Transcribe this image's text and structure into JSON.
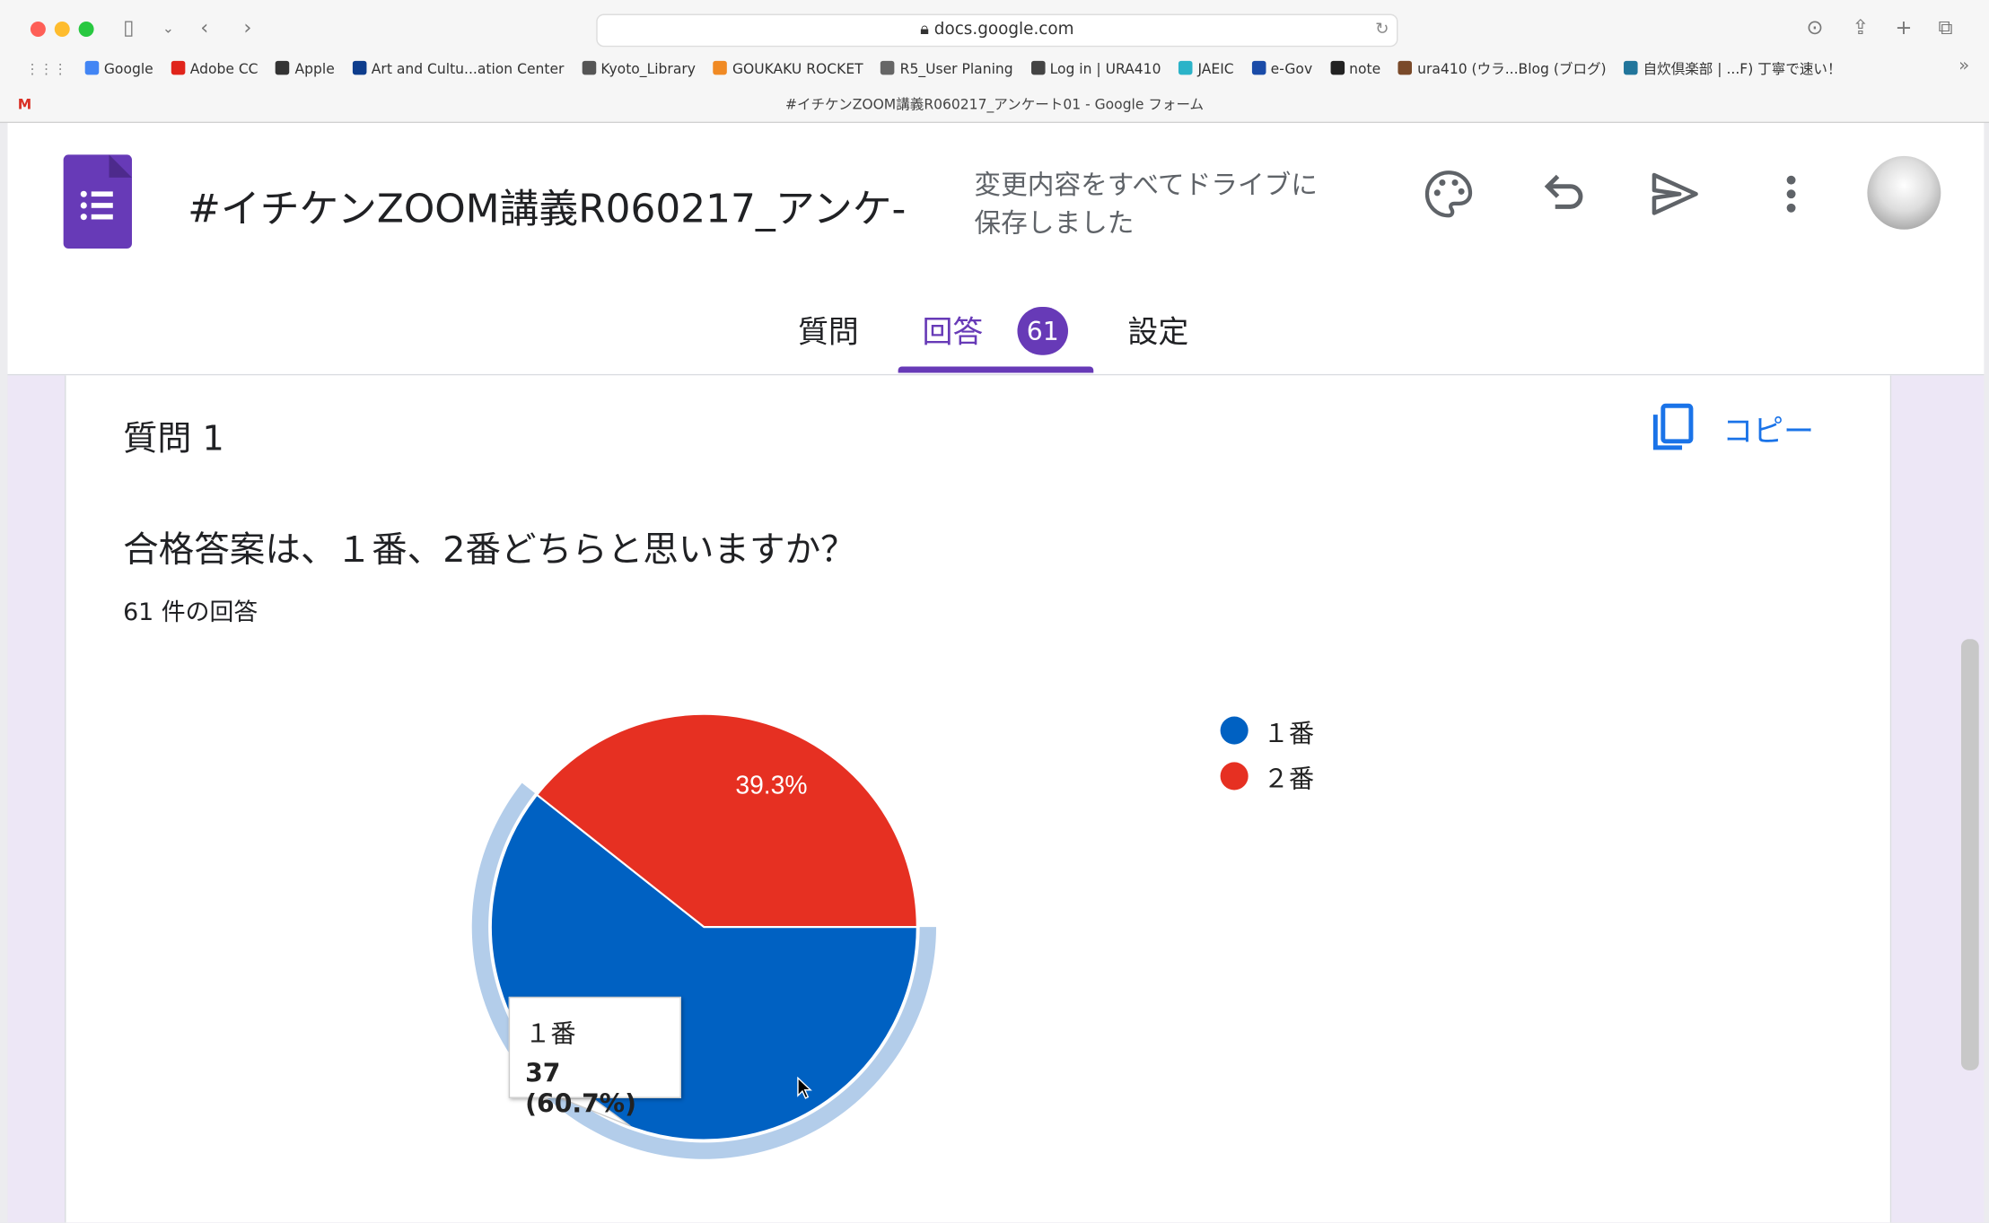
{
  "browser": {
    "url": "docs.google.com",
    "tab_title": "#イチケンZOOM講義R060217_アンケート01 - Google フォーム",
    "bookmarks": [
      "Google",
      "Adobe CC",
      "Apple",
      "Art and Cultu...ation Center",
      "Kyoto_Library",
      "GOUKAKU ROCKET",
      "R5_User Planing",
      "Log in | URA410",
      "JAEIC",
      "e-Gov",
      "note",
      "ura410 (ウラ...Blog (ブログ)",
      "自炊倶楽部 | ...F) 丁寧で速い！"
    ],
    "bookmark_colors": [
      "#4285f4",
      "#e0241b",
      "#333333",
      "#0d3c8c",
      "#555555",
      "#f08a24",
      "#666666",
      "#444444",
      "#2bb3c8",
      "#1a4ba8",
      "#222222",
      "#7a4a2a",
      "#21759b"
    ]
  },
  "header": {
    "title": "#イチケンZOOM講義R060217_アンケ-",
    "save_status_line1": "変更内容をすべてドライブに",
    "save_status_line2": "保存しました"
  },
  "tabs": [
    {
      "label": "質問"
    },
    {
      "label": "回答",
      "active": true
    },
    {
      "label": "設定"
    }
  ],
  "response_badge": "61",
  "question": {
    "number_label": "質問 1",
    "copy_label": "コピー",
    "text": "合格答案は、１番、2番どちらと思いますか？",
    "response_count": "61 件の回答"
  },
  "colors": {
    "accent": "#673ab7",
    "blue": "#0061c2",
    "red": "#e63022",
    "highlight": "#b3cdea"
  },
  "chart_data": {
    "type": "pie",
    "slices": [
      {
        "label": "１番",
        "value": 37,
        "percent": 60.7,
        "color": "#0061c2"
      },
      {
        "label": "２番",
        "value": 24,
        "percent": 39.3,
        "color": "#e63022"
      }
    ],
    "data_labels": [
      "39.3%"
    ],
    "legend_position": "right",
    "tooltip": {
      "title": "１番",
      "value": "37 (60.7%)"
    }
  }
}
